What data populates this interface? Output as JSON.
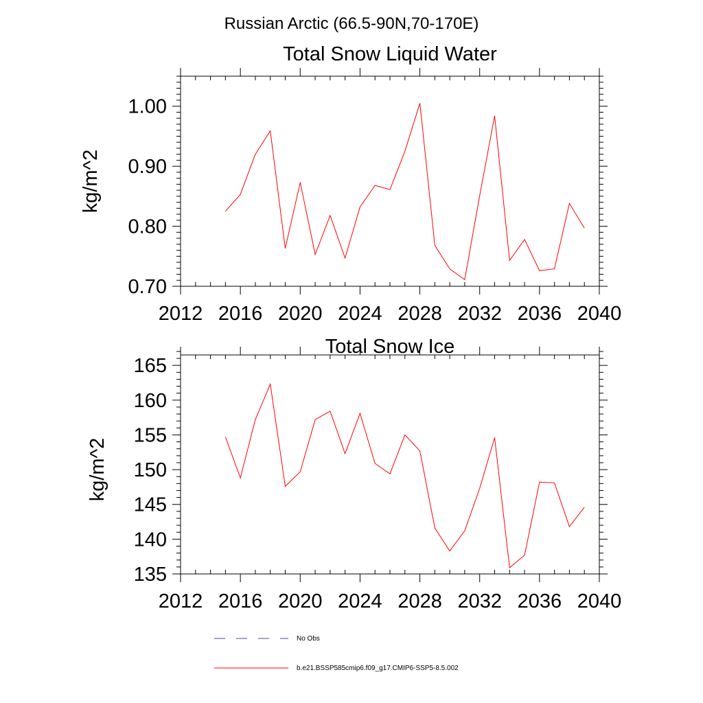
{
  "figure": {
    "suptitle": "Russian Arctic (66.5-90N,70-170E)"
  },
  "chart_data": [
    {
      "type": "line",
      "title": "Total Snow Liquid Water",
      "xlabel": "",
      "ylabel": "kg/m^2",
      "xlim": [
        2012,
        2040
      ],
      "ylim": [
        0.7,
        1.05
      ],
      "xticks": [
        2012,
        2016,
        2020,
        2024,
        2028,
        2032,
        2036,
        2040
      ],
      "xtick_labels": [
        "2012",
        "2016",
        "2020",
        "2024",
        "2028",
        "2032",
        "2036",
        "2040"
      ],
      "yticks": [
        0.7,
        0.8,
        0.9,
        1.0
      ],
      "ytick_labels": [
        "0.70",
        "0.80",
        "0.90",
        "1.00"
      ],
      "grid": false,
      "series": [
        {
          "name": "b.e21.BSSP585cmip6.f09_g17.CMIP6-SSP5-8.5.002",
          "color": "#ff0000",
          "x": [
            2015,
            2016,
            2017,
            2018,
            2019,
            2020,
            2021,
            2022,
            2023,
            2024,
            2025,
            2026,
            2027,
            2028,
            2029,
            2030,
            2031,
            2032,
            2033,
            2034,
            2035,
            2036,
            2037,
            2038,
            2039
          ],
          "y": [
            0.825,
            0.853,
            0.92,
            0.959,
            0.763,
            0.873,
            0.753,
            0.818,
            0.747,
            0.832,
            0.868,
            0.861,
            0.925,
            1.005,
            0.768,
            0.729,
            0.711,
            0.851,
            0.984,
            0.743,
            0.778,
            0.726,
            0.729,
            0.838,
            0.797
          ]
        }
      ]
    },
    {
      "type": "line",
      "title": "Total Snow Ice",
      "xlabel": "",
      "ylabel": "kg/m^2",
      "xlim": [
        2012,
        2040
      ],
      "ylim": [
        135,
        166.5
      ],
      "xticks": [
        2012,
        2016,
        2020,
        2024,
        2028,
        2032,
        2036,
        2040
      ],
      "xtick_labels": [
        "2012",
        "2016",
        "2020",
        "2024",
        "2028",
        "2032",
        "2036",
        "2040"
      ],
      "yticks": [
        135,
        140,
        145,
        150,
        155,
        160,
        165
      ],
      "ytick_labels": [
        "135",
        "140",
        "145",
        "150",
        "155",
        "160",
        "165"
      ],
      "grid": false,
      "series": [
        {
          "name": "b.e21.BSSP585cmip6.f09_g17.CMIP6-SSP5-8.5.002",
          "color": "#ff0000",
          "x": [
            2015,
            2016,
            2017,
            2018,
            2019,
            2020,
            2021,
            2022,
            2023,
            2024,
            2025,
            2026,
            2027,
            2028,
            2029,
            2030,
            2031,
            2032,
            2033,
            2034,
            2035,
            2036,
            2037,
            2038,
            2039
          ],
          "y": [
            154.7,
            148.8,
            157.2,
            162.3,
            147.6,
            149.7,
            157.2,
            158.4,
            152.3,
            158.1,
            150.9,
            149.4,
            155.0,
            152.7,
            141.6,
            138.3,
            141.2,
            147.3,
            154.6,
            135.9,
            137.7,
            148.2,
            148.1,
            141.8,
            144.6
          ]
        }
      ]
    }
  ],
  "legend": {
    "placement": "bottom",
    "items": [
      {
        "label": "No Obs",
        "color": "#4a4a8a",
        "style": "dashed"
      },
      {
        "label": "b.e21.BSSP585cmip6.f09_g17.CMIP6-SSP5-8.5.002",
        "color": "#ff0000",
        "style": "solid"
      }
    ]
  }
}
